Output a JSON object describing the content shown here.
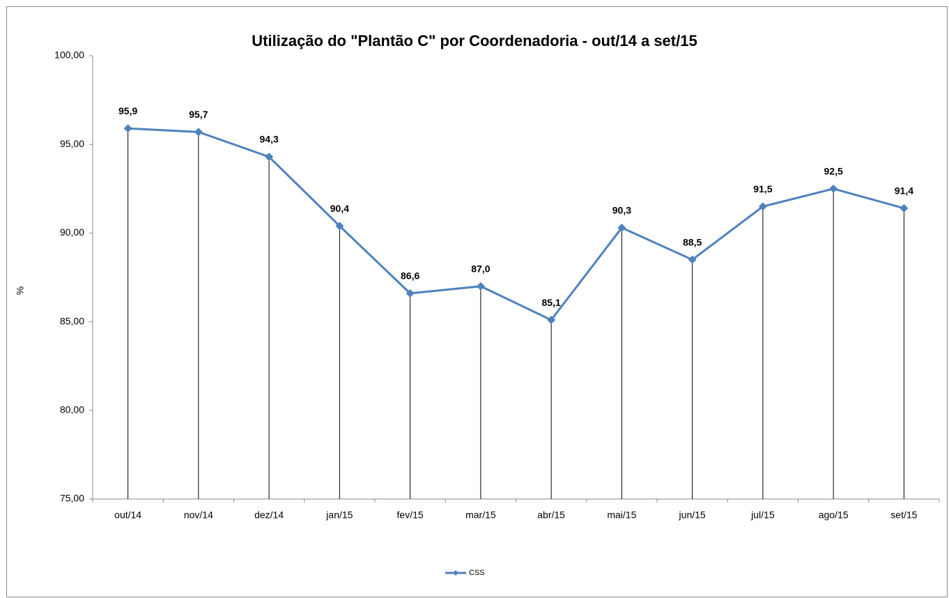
{
  "chart_data": {
    "type": "line",
    "title": "Utilização do \"Plantão C\" por Coordenadoria - out/14 a set/15",
    "ylabel": "%",
    "categories": [
      "out/14",
      "nov/14",
      "dez/14",
      "jan/15",
      "fev/15",
      "mar/15",
      "abr/15",
      "mai/15",
      "jun/15",
      "jul/15",
      "ago/15",
      "set/15"
    ],
    "series": [
      {
        "name": "CSS",
        "color": "#4f81bd",
        "values": [
          95.9,
          95.7,
          94.3,
          90.4,
          86.6,
          87.0,
          85.1,
          90.3,
          88.5,
          91.5,
          92.5,
          91.4
        ],
        "value_labels": [
          "95,9",
          "95,7",
          "94,3",
          "90,4",
          "86,6",
          "87,0",
          "85,1",
          "90,3",
          "88,5",
          "91,5",
          "92,5",
          "91,4"
        ]
      }
    ],
    "ylim": [
      75,
      100
    ],
    "yticks": [
      {
        "value": 75,
        "label": "75,00"
      },
      {
        "value": 80,
        "label": "80,00"
      },
      {
        "value": 85,
        "label": "85,00"
      },
      {
        "value": 90,
        "label": "90,00"
      },
      {
        "value": 95,
        "label": "95,00"
      },
      {
        "value": 100,
        "label": "100,00"
      }
    ],
    "grid": false,
    "drop_lines": true,
    "legend": "bottom"
  }
}
